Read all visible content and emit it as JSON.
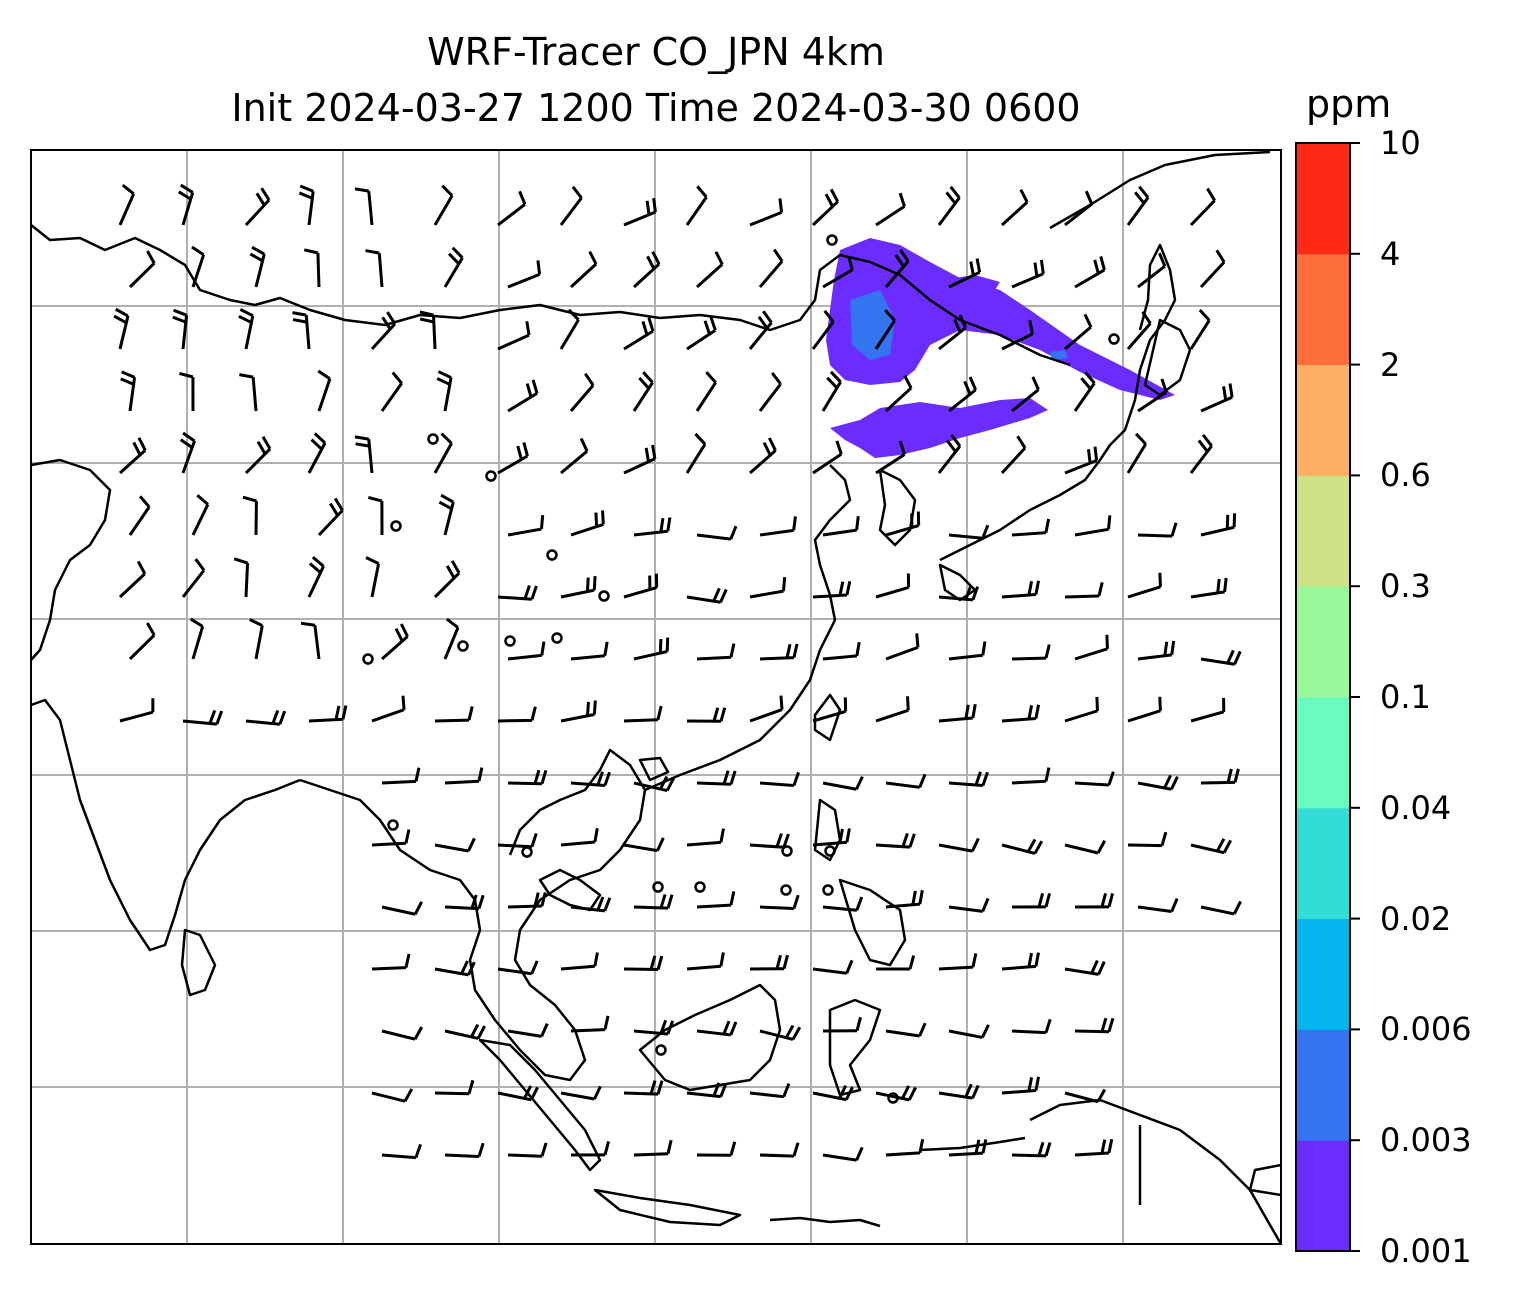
{
  "title": {
    "line1": "WRF-Tracer CO_JPN 4km",
    "line2": "Init 2024-03-27 1200 Time 2024-03-30 0600"
  },
  "colorbar": {
    "unit": "ppm",
    "ticks": [
      "0.001",
      "0.003",
      "0.006",
      "0.02",
      "0.04",
      "0.1",
      "0.3",
      "0.6",
      "2",
      "4",
      "10"
    ],
    "colors": [
      "#6a2cff",
      "#3474f0",
      "#06b4ee",
      "#33ddd6",
      "#6afbc0",
      "#9af89a",
      "#cde286",
      "#fdb063",
      "#ff6f3b",
      "#ff2a16"
    ]
  },
  "map": {
    "tracer": "CO_JPN",
    "resolution": "4km",
    "plume_color": "#6a2cff",
    "plume_core_color": "#3474f0",
    "gridline_color": "#b0b0b0",
    "coastline_color": "#000000"
  }
}
